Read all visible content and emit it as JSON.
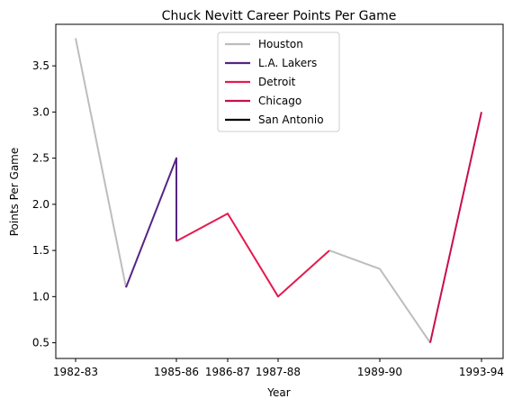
{
  "chart_data": {
    "type": "line",
    "title": "Chuck Nevitt Career Points Per Game",
    "xlabel": "Year",
    "ylabel": "Points Per Game",
    "x_ticks": [
      "1982-83",
      "1985-86",
      "1986-87",
      "1987-88",
      "1989-90",
      "1993-94"
    ],
    "y_ticks": [
      "0.5",
      "1.0",
      "1.5",
      "2.0",
      "2.5",
      "3.0",
      "3.5"
    ],
    "ylim": [
      0.33,
      3.95
    ],
    "grid": false,
    "legend_position": "top-center",
    "series": [
      {
        "name": "Houston",
        "color": "#bdbdbd",
        "segments": [
          [
            {
              "x": "1982-83",
              "y": 3.8
            },
            {
              "x": "1984-85",
              "y": 1.1
            }
          ],
          [
            {
              "x": "1988-89",
              "y": 1.5
            },
            {
              "x": "1989-90",
              "y": 1.3
            },
            {
              "x": "1990-91",
              "y": 0.5
            }
          ]
        ]
      },
      {
        "name": "L.A. Lakers",
        "color": "#552583",
        "segments": [
          [
            {
              "x": "1984-85",
              "y": 1.1
            },
            {
              "x": "1985-86",
              "y": 2.5
            },
            {
              "x": "1985-86",
              "y": 1.6
            }
          ]
        ]
      },
      {
        "name": "Detroit",
        "color": "#e31b4f",
        "segments": [
          [
            {
              "x": "1985-86",
              "y": 1.6
            },
            {
              "x": "1986-87",
              "y": 1.9
            },
            {
              "x": "1987-88",
              "y": 1.0
            },
            {
              "x": "1988-89",
              "y": 1.5
            }
          ]
        ]
      },
      {
        "name": "Chicago",
        "color": "#c8104a",
        "segments": [
          [
            {
              "x": "1990-91",
              "y": 0.5
            },
            {
              "x": "1993-94",
              "y": 3.0
            }
          ]
        ]
      },
      {
        "name": "San Antonio",
        "color": "#000000",
        "segments": []
      }
    ]
  }
}
